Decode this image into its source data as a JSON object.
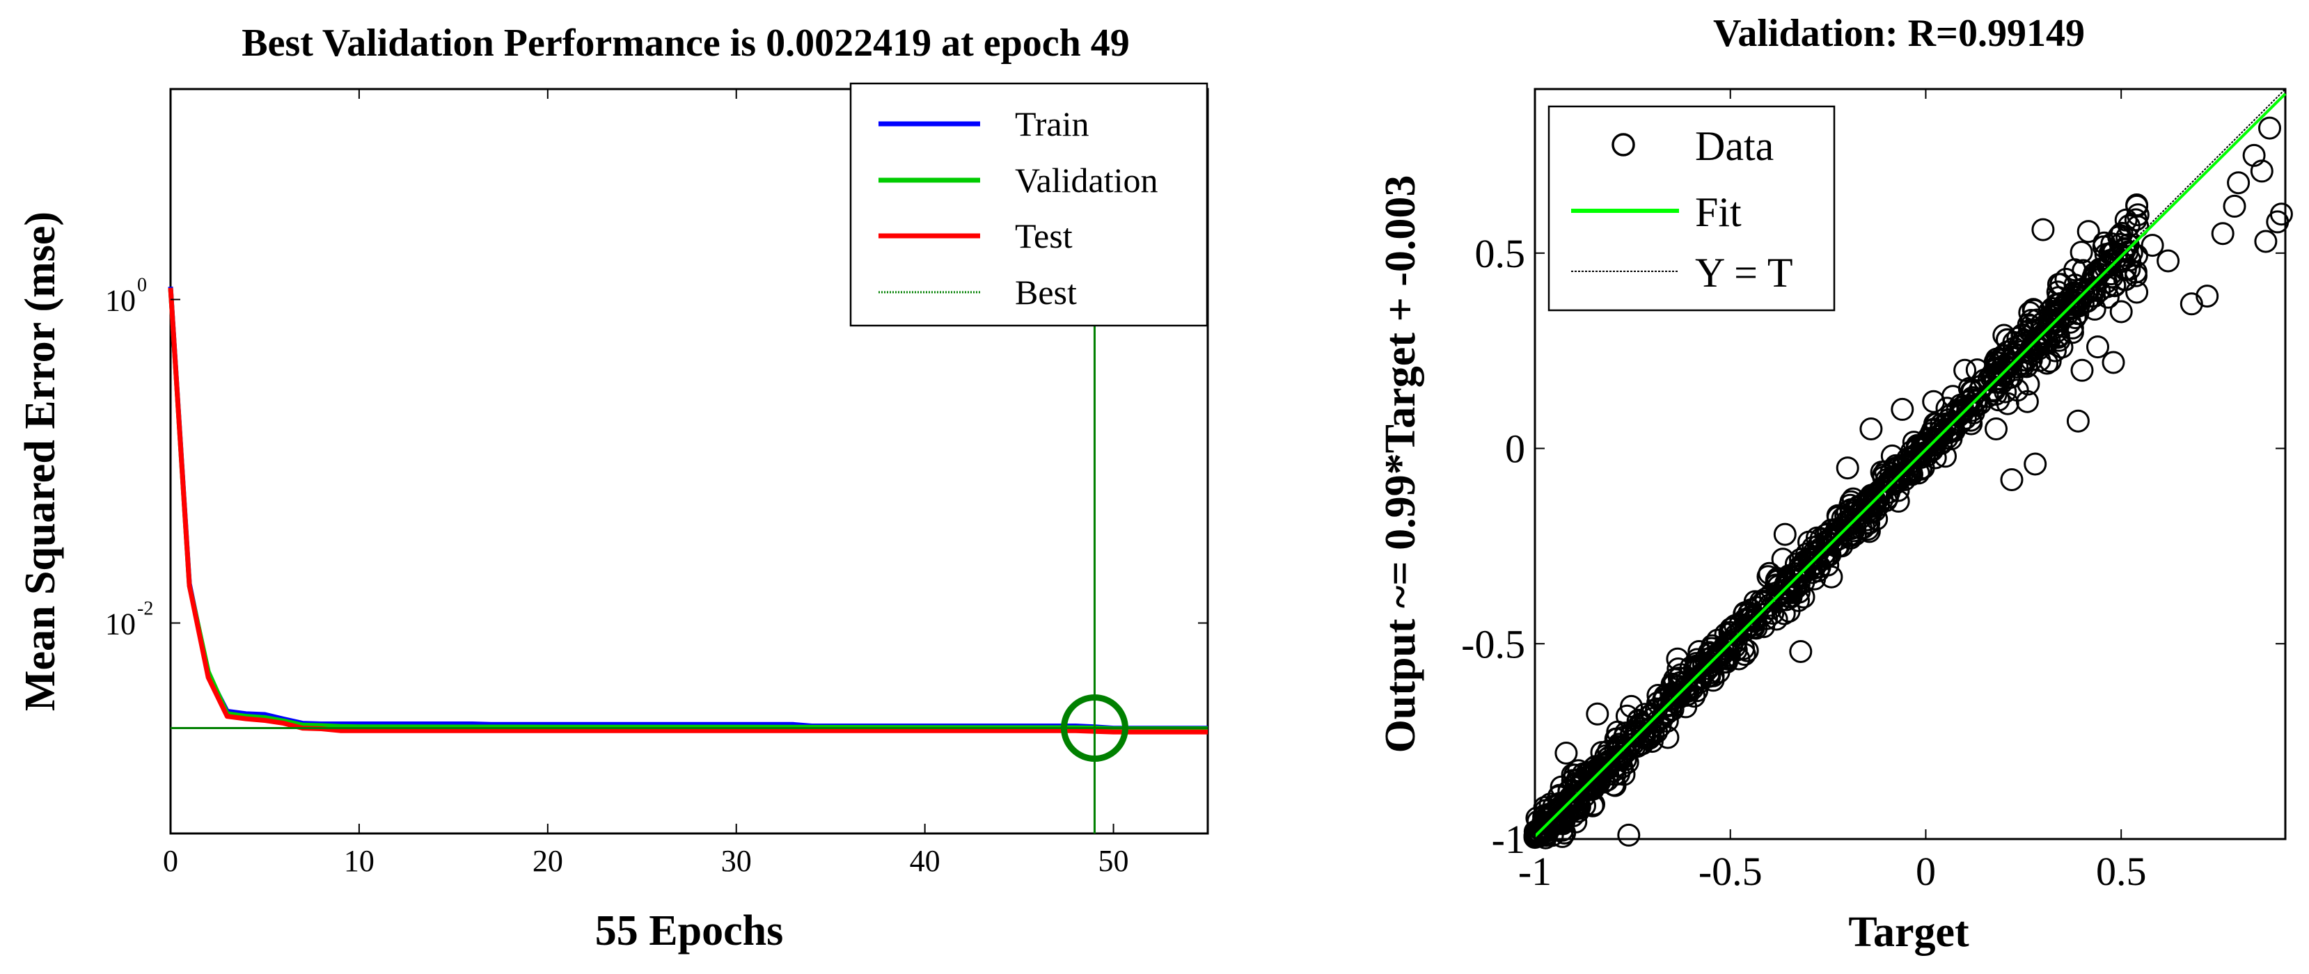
{
  "chart_data": [
    {
      "type": "line",
      "title": "Best Validation Performance is 0.0022419 at epoch 49",
      "xlabel": "55 Epochs",
      "ylabel": "Mean Squared Error  (mse)",
      "yscale": "log",
      "xlim": [
        0,
        55
      ],
      "ylim": [
        0.0005,
        20
      ],
      "x_ticks": [
        0,
        10,
        20,
        30,
        40,
        50
      ],
      "y_ticks": [
        {
          "base": "10",
          "exp": "0",
          "value": 1
        },
        {
          "base": "10",
          "exp": "-2",
          "value": 0.01
        }
      ],
      "series": [
        {
          "name": "Train",
          "color": "#0000ff",
          "x": [
            0,
            1,
            2,
            3,
            4,
            5,
            6,
            7,
            8,
            9,
            10,
            16,
            17,
            20,
            30,
            33,
            34,
            40,
            48,
            49,
            50,
            55
          ],
          "y": [
            1.2,
            0.0175,
            0.0048,
            0.00285,
            0.00275,
            0.00272,
            0.00255,
            0.0024,
            0.00238,
            0.00238,
            0.00238,
            0.00238,
            0.00236,
            0.00236,
            0.00236,
            0.00236,
            0.00231,
            0.00231,
            0.00231,
            0.00228,
            0.00224,
            0.00224
          ]
        },
        {
          "name": "Validation",
          "color": "#00cc00",
          "x": [
            0,
            1,
            2,
            3,
            4,
            5,
            6,
            7,
            8,
            9,
            10,
            20,
            30,
            40,
            48,
            49,
            50,
            55
          ],
          "y": [
            1.18,
            0.017,
            0.005,
            0.00275,
            0.00265,
            0.0026,
            0.00248,
            0.00234,
            0.00232,
            0.00229,
            0.00228,
            0.00227,
            0.00227,
            0.00226,
            0.00225,
            0.0022419,
            0.00222,
            0.00222
          ]
        },
        {
          "name": "Test",
          "color": "#ff0000",
          "x": [
            0,
            1,
            2,
            3,
            4,
            5,
            6,
            7,
            8,
            9,
            10,
            20,
            30,
            40,
            48,
            49,
            50,
            55
          ],
          "y": [
            1.18,
            0.017,
            0.0046,
            0.00265,
            0.00256,
            0.0025,
            0.0024,
            0.00224,
            0.00222,
            0.00216,
            0.00216,
            0.00216,
            0.00216,
            0.00216,
            0.00216,
            0.00214,
            0.00212,
            0.00212
          ]
        }
      ],
      "best": {
        "name": "Best",
        "epoch": 49,
        "value": 0.0022419,
        "color": "#008000"
      },
      "legend": [
        "Train",
        "Validation",
        "Test",
        "Best"
      ],
      "legend_location": "top-right"
    },
    {
      "type": "scatter",
      "title": "Validation: R=0.99149",
      "xlabel": "Target",
      "ylabel": "Output ~= 0.99*Target + -0.003",
      "xlim": [
        -1,
        0.92
      ],
      "ylim": [
        -1,
        0.92
      ],
      "x_ticks": [
        -1,
        -0.5,
        0,
        0.5
      ],
      "y_ticks": [
        -1,
        -0.5,
        0,
        0.5
      ],
      "x_tick_labels": [
        "-1",
        "-0.5",
        "0",
        "0.5"
      ],
      "y_tick_labels": [
        "-1",
        "-0.5",
        "0",
        "0.5"
      ],
      "fit": {
        "slope": 0.99,
        "intercept": -0.003,
        "color": "#00ff00"
      },
      "identity_color": "#000000",
      "legend": [
        "Data",
        "Fit",
        "Y = T"
      ],
      "legend_location": "top-left",
      "outliers": [
        [
          -0.76,
          -0.99
        ],
        [
          -0.98,
          -0.96
        ],
        [
          -0.84,
          -0.68
        ],
        [
          -0.66,
          -0.74
        ],
        [
          -0.46,
          -0.44
        ],
        [
          -0.4,
          -0.32
        ],
        [
          -0.32,
          -0.52
        ],
        [
          -0.26,
          -0.27
        ],
        [
          -0.36,
          -0.22
        ],
        [
          -0.18,
          -0.22
        ],
        [
          -0.1,
          -0.08
        ],
        [
          -0.14,
          0.05
        ],
        [
          0.18,
          0.05
        ],
        [
          0.22,
          -0.08
        ],
        [
          0.28,
          -0.04
        ],
        [
          0.39,
          0.07
        ],
        [
          0.22,
          0.22
        ],
        [
          0.4,
          0.2
        ],
        [
          0.44,
          0.26
        ],
        [
          0.48,
          0.22
        ],
        [
          0.5,
          0.35
        ],
        [
          0.54,
          0.4
        ],
        [
          0.58,
          0.52
        ],
        [
          0.62,
          0.48
        ],
        [
          0.68,
          0.37
        ],
        [
          0.72,
          0.39
        ],
        [
          0.76,
          0.55
        ],
        [
          0.8,
          0.68
        ],
        [
          0.84,
          0.75
        ],
        [
          0.86,
          0.71
        ],
        [
          0.88,
          0.82
        ],
        [
          0.9,
          0.58
        ],
        [
          0.87,
          0.53
        ],
        [
          0.91,
          0.6
        ],
        [
          0.79,
          0.62
        ],
        [
          0.54,
          0.62
        ],
        [
          0.52,
          0.57
        ],
        [
          0.3,
          0.56
        ],
        [
          0.34,
          0.42
        ],
        [
          0.26,
          0.12
        ],
        [
          0.12,
          0.13
        ],
        [
          0.02,
          0.12
        ],
        [
          0.05,
          -0.02
        ],
        [
          -0.06,
          0.1
        ],
        [
          -0.58,
          -0.52
        ],
        [
          -0.7,
          -0.75
        ],
        [
          -0.92,
          -0.78
        ],
        [
          -0.6,
          -0.61
        ],
        [
          -0.2,
          -0.05
        ],
        [
          0.1,
          0.2
        ]
      ],
      "n_points": 900
    }
  ]
}
